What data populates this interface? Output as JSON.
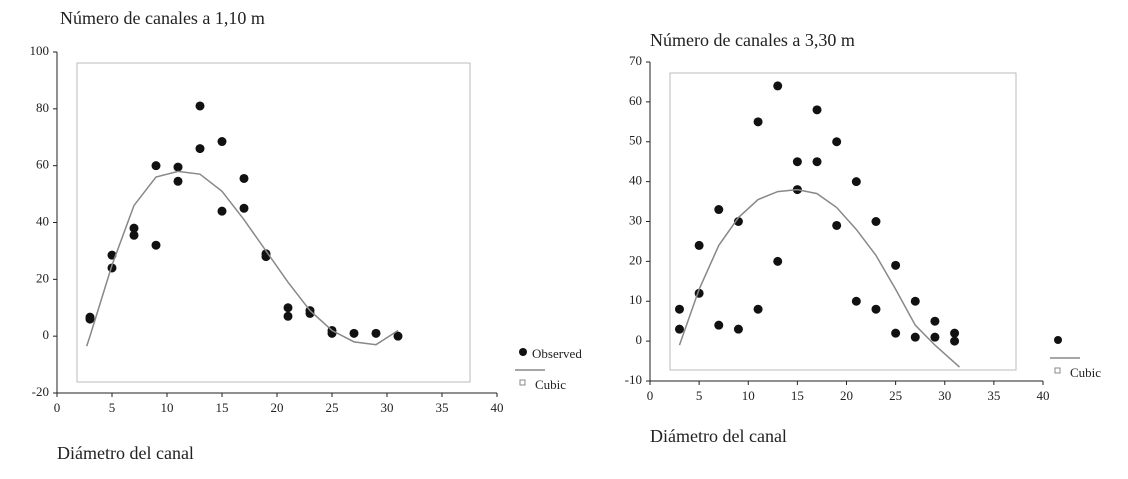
{
  "chart_data": [
    {
      "type": "scatter",
      "title": "Número de canales a 1,10 m",
      "x_label": "Diámetro del canal",
      "xlim": [
        0,
        40
      ],
      "xticks": [
        0,
        5,
        10,
        15,
        20,
        25,
        30,
        35,
        40
      ],
      "ylim": [
        -20,
        100
      ],
      "yticks": [
        -20,
        0,
        20,
        40,
        60,
        80,
        100
      ],
      "series": [
        {
          "name": "Observed",
          "color": "#111111",
          "mode": "markers",
          "x": [
            3,
            3,
            5,
            5,
            7,
            7,
            9,
            9,
            11,
            11,
            13,
            13,
            15,
            15,
            17,
            17,
            19,
            19,
            21,
            21,
            23,
            23,
            25,
            25,
            27,
            29,
            31
          ],
          "values": [
            6.7,
            6,
            28.5,
            24,
            38,
            35.5,
            60,
            32,
            59.5,
            54.5,
            81,
            66,
            68.5,
            44,
            55.5,
            45,
            29,
            28,
            10,
            7,
            9,
            8,
            2,
            1,
            1,
            1,
            0
          ]
        },
        {
          "name": "Cubic",
          "color": "#888888",
          "mode": "line",
          "x": [
            2.7,
            3,
            5,
            7,
            9,
            11,
            13,
            15,
            17,
            19,
            21,
            23,
            25,
            27,
            29,
            31
          ],
          "values": [
            -3.5,
            0,
            25,
            46,
            56,
            58,
            57,
            51,
            41,
            30,
            19,
            9,
            2,
            -2,
            -3,
            2
          ]
        }
      ]
    },
    {
      "type": "scatter",
      "title": "Número de canales a 3,30 m",
      "x_label": "Diámetro del canal",
      "xlim": [
        0,
        40
      ],
      "xticks": [
        0,
        5,
        10,
        15,
        20,
        25,
        30,
        35,
        40
      ],
      "ylim": [
        -10,
        70
      ],
      "yticks": [
        -10,
        0,
        10,
        20,
        30,
        40,
        50,
        60,
        70
      ],
      "series": [
        {
          "color": "#111111",
          "mode": "markers",
          "x": [
            3,
            3,
            5,
            5,
            7,
            7,
            9,
            9,
            11,
            11,
            13,
            13,
            15,
            15,
            17,
            17,
            19,
            19,
            21,
            21,
            23,
            23,
            25,
            25,
            27,
            27,
            29,
            29,
            31,
            31
          ],
          "values": [
            8,
            3,
            24,
            12,
            33,
            4,
            30,
            3,
            55,
            8,
            64,
            20,
            45,
            38,
            58,
            45,
            50,
            29,
            40,
            10,
            30,
            8,
            19,
            2,
            10,
            1,
            5,
            1,
            2,
            0
          ]
        },
        {
          "name": "Cubic",
          "color": "#888888",
          "mode": "line",
          "x": [
            3,
            5,
            7,
            9,
            11,
            13,
            15,
            17,
            19,
            21,
            23,
            25,
            27,
            29,
            31.5
          ],
          "values": [
            -1,
            13,
            24,
            31,
            35.5,
            37.5,
            38,
            37,
            33.5,
            28,
            21.5,
            13,
            4,
            -1,
            -6.5
          ]
        }
      ]
    }
  ]
}
